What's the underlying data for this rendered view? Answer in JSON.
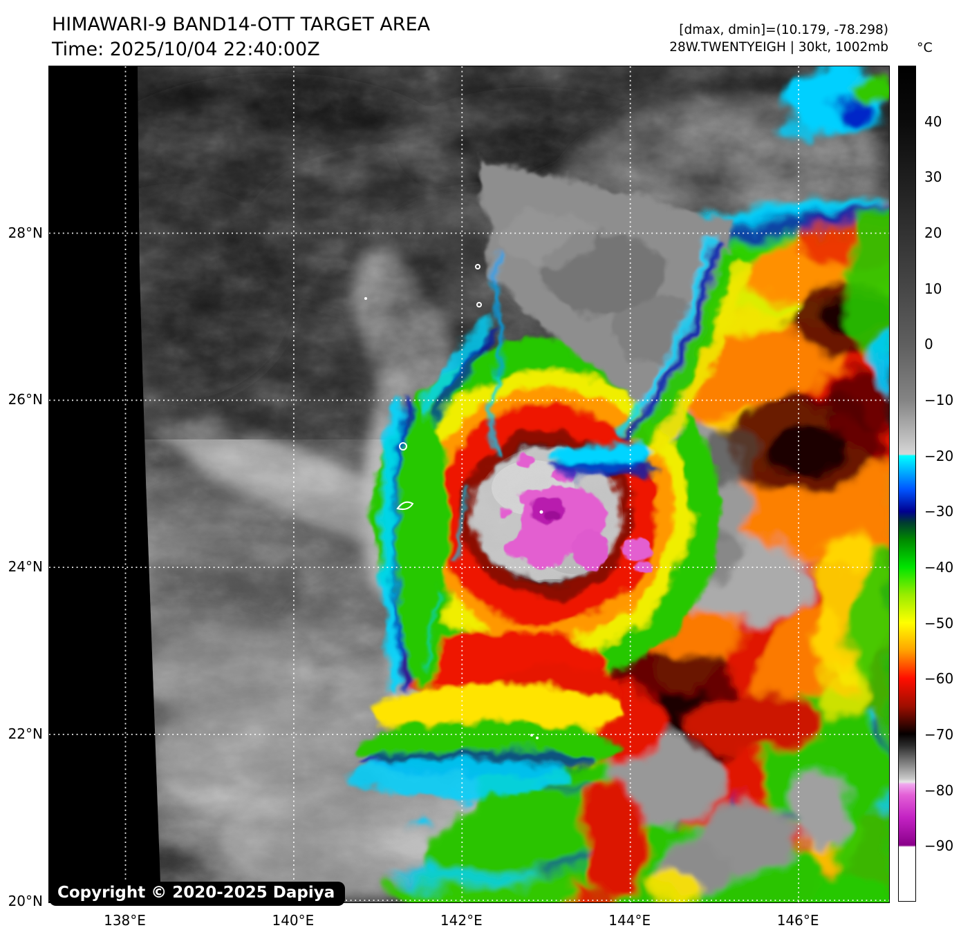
{
  "header": {
    "title": "HIMAWARI-9 BAND14-OTT TARGET AREA",
    "time": "Time: 2025/10/04 22:40:00Z",
    "dmax_dmin": "[dmax, dmin]=(10.179, -78.298)",
    "storm": "28W.TWENTYEIGH | 30kt, 1002mb"
  },
  "colorbar": {
    "unit": "°C",
    "scale": {
      "top_temp": 50,
      "bottom_temp": -100
    },
    "ticks": [
      {
        "label": "40",
        "value": 40
      },
      {
        "label": "30",
        "value": 30
      },
      {
        "label": "20",
        "value": 20
      },
      {
        "label": "10",
        "value": 10
      },
      {
        "label": "0",
        "value": 0
      },
      {
        "label": "−10",
        "value": -10
      },
      {
        "label": "−20",
        "value": -20
      },
      {
        "label": "−30",
        "value": -30
      },
      {
        "label": "−40",
        "value": -40
      },
      {
        "label": "−50",
        "value": -50
      },
      {
        "label": "−60",
        "value": -60
      },
      {
        "label": "−70",
        "value": -70
      },
      {
        "label": "−80",
        "value": -80
      },
      {
        "label": "−90",
        "value": -90
      }
    ],
    "stops": [
      {
        "t": 50,
        "c": "#000000"
      },
      {
        "t": 40,
        "c": "#0b0b0b"
      },
      {
        "t": 30,
        "c": "#1e1e1e"
      },
      {
        "t": 20,
        "c": "#323232"
      },
      {
        "t": 10,
        "c": "#474747"
      },
      {
        "t": 0,
        "c": "#5f5f5f"
      },
      {
        "t": -10,
        "c": "#848484"
      },
      {
        "t": -19.7,
        "c": "#d6d6d6"
      },
      {
        "t": -20,
        "c": "#00ffff"
      },
      {
        "t": -23,
        "c": "#00aaff"
      },
      {
        "t": -26,
        "c": "#0055ff"
      },
      {
        "t": -30,
        "c": "#000090"
      },
      {
        "t": -32,
        "c": "#003c30"
      },
      {
        "t": -35,
        "c": "#008800"
      },
      {
        "t": -40,
        "c": "#00e400"
      },
      {
        "t": -45,
        "c": "#9aec00"
      },
      {
        "t": -50,
        "c": "#ffff00"
      },
      {
        "t": -55,
        "c": "#ffa200"
      },
      {
        "t": -60,
        "c": "#ff0e00"
      },
      {
        "t": -65,
        "c": "#9e0e00"
      },
      {
        "t": -70,
        "c": "#050000"
      },
      {
        "t": -72,
        "c": "#2a2a2a"
      },
      {
        "t": -75,
        "c": "#7a7a7a"
      },
      {
        "t": -78,
        "c": "#c8c8c8"
      },
      {
        "t": -78.6,
        "c": "#e6e6e6"
      },
      {
        "t": -79,
        "c": "#f0a8ee"
      },
      {
        "t": -81,
        "c": "#e35fd6"
      },
      {
        "t": -85,
        "c": "#c322c3"
      },
      {
        "t": -90,
        "c": "#8a008a"
      },
      {
        "t": -90.3,
        "c": "#ffffff"
      },
      {
        "t": -100,
        "c": "#ffffff"
      }
    ]
  },
  "axes": {
    "lat_ticks": [
      {
        "label": "28°N",
        "value": 28
      },
      {
        "label": "26°N",
        "value": 26
      },
      {
        "label": "24°N",
        "value": 24
      },
      {
        "label": "22°N",
        "value": 22
      },
      {
        "label": "20°N",
        "value": 20
      }
    ],
    "lon_ticks": [
      {
        "label": "138°E",
        "value": 138
      },
      {
        "label": "140°E",
        "value": 140
      },
      {
        "label": "142°E",
        "value": 142
      },
      {
        "label": "144°E",
        "value": 144
      },
      {
        "label": "146°E",
        "value": 146
      }
    ]
  },
  "map": {
    "copyright": "Copyright © 2020-2025 Dapiya"
  }
}
